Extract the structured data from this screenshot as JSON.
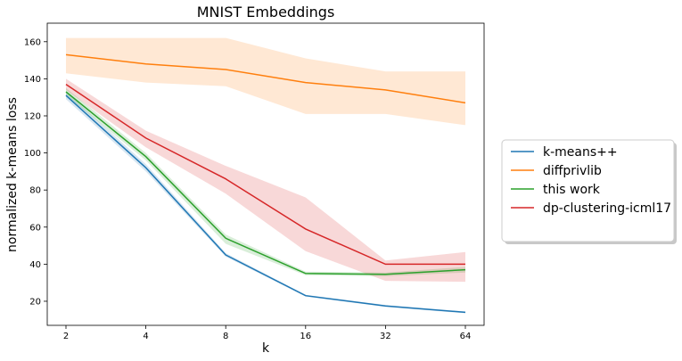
{
  "chart_data": {
    "type": "line",
    "title": "MNIST Embeddings",
    "xlabel": "k",
    "ylabel": "normalized k-means loss",
    "x_scale": "log2",
    "x": [
      2,
      4,
      8,
      16,
      32,
      64
    ],
    "x_tick_labels": [
      "2",
      "4",
      "8",
      "16",
      "32",
      "64"
    ],
    "y_ticks": [
      20,
      40,
      60,
      80,
      100,
      120,
      140,
      160
    ],
    "y_tick_labels": [
      "20",
      "40",
      "60",
      "80",
      "100",
      "120",
      "140",
      "160"
    ],
    "ylim": [
      7,
      170
    ],
    "grid": false,
    "legend_position": "right, outside plot",
    "series": [
      {
        "name": "k-means++",
        "color": "#1f77b4",
        "values": [
          131,
          92,
          45,
          23,
          17.5,
          14
        ],
        "lower": [
          129,
          90,
          44,
          22.5,
          17,
          13.5
        ],
        "upper": [
          133,
          94,
          46,
          23.5,
          18,
          14.5
        ]
      },
      {
        "name": "diffprivlib",
        "color": "#ff7f0e",
        "values": [
          153,
          148,
          145,
          138,
          134,
          127
        ],
        "lower": [
          143,
          138,
          136,
          121,
          121,
          115
        ],
        "upper": [
          162,
          162,
          162,
          151,
          144,
          144
        ]
      },
      {
        "name": "this work",
        "color": "#2ca02c",
        "values": [
          133,
          98,
          54,
          35,
          34.5,
          37
        ],
        "lower": [
          131,
          96,
          51,
          34,
          33.5,
          35.5
        ],
        "upper": [
          135,
          100,
          56,
          36,
          35.5,
          38.5
        ]
      },
      {
        "name": "dp-clustering-icml17",
        "color": "#d62728",
        "values": [
          137,
          108,
          86,
          59,
          40,
          40
        ],
        "lower": [
          134,
          103,
          78,
          47,
          31,
          30.5
        ],
        "upper": [
          140,
          112,
          93,
          76,
          42,
          46.5
        ]
      }
    ]
  }
}
